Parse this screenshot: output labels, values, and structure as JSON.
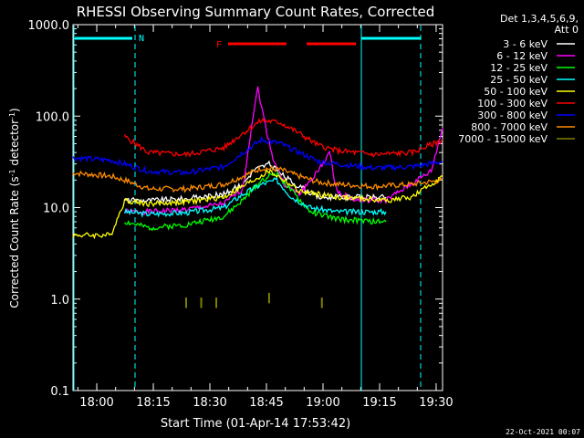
{
  "chart_data": {
    "type": "line",
    "title": "RHESSI Observing Summary Count Rates, Corrected",
    "xlabel": "Start Time (01-Apr-14 17:53:42)",
    "ylabel_prefix": "Corrected Count Rate (s",
    "ylabel_sup": "-1",
    "ylabel_suffix": " detector",
    "ylabel_sup2": "-1",
    "ylabel_end": ")",
    "yscale": "log",
    "ylim": [
      0.1,
      1000
    ],
    "xlim_minutes": [
      0,
      98
    ],
    "x_ticks": [
      {
        "label": "18:00",
        "t": 6.3
      },
      {
        "label": "18:15",
        "t": 21.3
      },
      {
        "label": "18:30",
        "t": 36.3
      },
      {
        "label": "18:45",
        "t": 51.3
      },
      {
        "label": "19:00",
        "t": 66.3
      },
      {
        "label": "19:15",
        "t": 81.3
      },
      {
        "label": "19:30",
        "t": 96.3
      }
    ],
    "y_ticks": [
      {
        "label": "1000.0",
        "v": 1000
      },
      {
        "label": "100.0",
        "v": 100
      },
      {
        "label": "10.0",
        "v": 10
      },
      {
        "label": "1.0",
        "v": 1
      },
      {
        "label": "0.1",
        "v": 0.1
      }
    ],
    "legend_header": [
      "Det 1,3,4,5,6,9,",
      "Att 0"
    ],
    "legend_position": "right",
    "timestamp": "22-Oct-2021 00:07",
    "flag_labels": {
      "N": "N",
      "F": "F"
    },
    "series": [
      {
        "name": "3 - 6 keV",
        "color": "#ffffff",
        "points": [
          [
            13.7,
            12
          ],
          [
            20,
            12
          ],
          [
            30,
            12.5
          ],
          [
            40,
            14
          ],
          [
            45,
            18
          ],
          [
            48,
            26
          ],
          [
            52,
            30
          ],
          [
            56,
            22
          ],
          [
            60,
            17
          ],
          [
            65,
            13
          ],
          [
            75,
            13
          ],
          [
            83,
            13
          ]
        ]
      },
      {
        "name": "6 - 12 keV",
        "color": "#ff00ff",
        "points": [
          [
            13.7,
            9
          ],
          [
            20,
            9
          ],
          [
            30,
            9.5
          ],
          [
            40,
            11
          ],
          [
            45,
            16
          ],
          [
            48,
            120
          ],
          [
            49,
            200
          ],
          [
            51,
            80
          ],
          [
            53,
            35
          ],
          [
            56,
            18
          ],
          [
            60,
            14
          ],
          [
            65,
            25
          ],
          [
            68,
            40
          ],
          [
            70,
            15
          ],
          [
            75,
            12
          ],
          [
            83,
            12
          ],
          [
            95,
            25
          ],
          [
            98,
            75
          ]
        ]
      },
      {
        "name": "12 - 25 keV",
        "color": "#00ff00",
        "points": [
          [
            13.7,
            7
          ],
          [
            20,
            6
          ],
          [
            30,
            6.5
          ],
          [
            40,
            8
          ],
          [
            45,
            12
          ],
          [
            50,
            20
          ],
          [
            54,
            24
          ],
          [
            58,
            15
          ],
          [
            63,
            9
          ],
          [
            70,
            7.5
          ],
          [
            80,
            7
          ],
          [
            83,
            7
          ]
        ]
      },
      {
        "name": "25 - 50 keV",
        "color": "#00ffff",
        "points": [
          [
            13.7,
            9
          ],
          [
            20,
            8.5
          ],
          [
            30,
            8.8
          ],
          [
            40,
            10
          ],
          [
            45,
            14
          ],
          [
            50,
            18
          ],
          [
            54,
            20
          ],
          [
            58,
            13
          ],
          [
            63,
            10
          ],
          [
            70,
            9
          ],
          [
            80,
            9
          ],
          [
            83,
            9
          ]
        ]
      },
      {
        "name": "50 - 100 keV",
        "color": "#ffff00",
        "points": [
          [
            0,
            5
          ],
          [
            10,
            5
          ],
          [
            13.7,
            12
          ],
          [
            20,
            11
          ],
          [
            30,
            11.5
          ],
          [
            40,
            13
          ],
          [
            45,
            17
          ],
          [
            52,
            25
          ],
          [
            56,
            20
          ],
          [
            60,
            15
          ],
          [
            70,
            13
          ],
          [
            83,
            12
          ],
          [
            90,
            13
          ],
          [
            98,
            22
          ]
        ]
      },
      {
        "name": "100 - 300 keV",
        "color": "#ff0000",
        "points": [
          [
            13.7,
            60
          ],
          [
            20,
            40
          ],
          [
            30,
            38
          ],
          [
            40,
            45
          ],
          [
            45,
            65
          ],
          [
            50,
            90
          ],
          [
            55,
            85
          ],
          [
            60,
            65
          ],
          [
            65,
            48
          ],
          [
            70,
            42
          ],
          [
            80,
            38
          ],
          [
            90,
            40
          ],
          [
            98,
            55
          ]
        ]
      },
      {
        "name": "300 - 800 keV",
        "color": "#0000ff",
        "points": [
          [
            0,
            35
          ],
          [
            10,
            33
          ],
          [
            13.7,
            30
          ],
          [
            20,
            25
          ],
          [
            30,
            24
          ],
          [
            40,
            28
          ],
          [
            45,
            40
          ],
          [
            50,
            55
          ],
          [
            55,
            50
          ],
          [
            60,
            40
          ],
          [
            65,
            32
          ],
          [
            70,
            30
          ],
          [
            80,
            27
          ],
          [
            90,
            28
          ],
          [
            98,
            32
          ]
        ]
      },
      {
        "name": "800 - 7000 keV",
        "color": "#ff8c00",
        "points": [
          [
            0,
            24
          ],
          [
            10,
            22
          ],
          [
            13.7,
            20
          ],
          [
            20,
            16
          ],
          [
            30,
            16
          ],
          [
            40,
            18
          ],
          [
            45,
            22
          ],
          [
            50,
            27
          ],
          [
            55,
            26
          ],
          [
            60,
            22
          ],
          [
            65,
            19
          ],
          [
            70,
            18
          ],
          [
            80,
            17
          ],
          [
            90,
            18
          ],
          [
            98,
            20
          ]
        ]
      },
      {
        "name": "7000 - 15000 keV",
        "color": "#808000",
        "points": [
          [
            30,
            0.8
          ],
          [
            34,
            0.8
          ],
          [
            38,
            0.8
          ],
          [
            52,
            0.9
          ],
          [
            66,
            0.8
          ]
        ]
      }
    ]
  }
}
